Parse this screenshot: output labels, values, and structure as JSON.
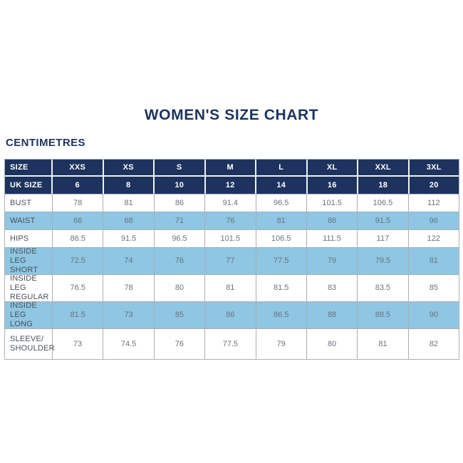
{
  "page": {
    "title": "WOMEN'S SIZE CHART",
    "unit_label": "CENTIMETRES"
  },
  "colors": {
    "navy": "#1d335e",
    "light_blue": "#8ec6e3",
    "grid_border": "#a9b0b6",
    "label_text": "#49525c",
    "value_text": "#6a737d",
    "header_text": "#ffffff"
  },
  "table": {
    "columns": [
      "XXS",
      "XS",
      "S",
      "M",
      "L",
      "XL",
      "XXL",
      "3XL"
    ],
    "rows": [
      {
        "name": "size-row",
        "type": "header",
        "label": "SIZE",
        "values": [
          "XXS",
          "XS",
          "S",
          "M",
          "L",
          "XL",
          "XXL",
          "3XL"
        ]
      },
      {
        "name": "uk-size-row",
        "type": "header",
        "label": "UK SIZE",
        "values": [
          "6",
          "8",
          "10",
          "12",
          "14",
          "16",
          "18",
          "20"
        ]
      },
      {
        "name": "bust-row",
        "type": "white",
        "label": "BUST",
        "values": [
          "78",
          "81",
          "86",
          "91.4",
          "96.5",
          "101.5",
          "106.5",
          "112"
        ]
      },
      {
        "name": "waist-row",
        "type": "blue",
        "label": "WAIST",
        "values": [
          "66",
          "68",
          "71",
          "76",
          "81",
          "86",
          "91.5",
          "96"
        ]
      },
      {
        "name": "hips-row",
        "type": "white",
        "label": "HIPS",
        "values": [
          "86.5",
          "91.5",
          "96.5",
          "101.5",
          "106.5",
          "111.5",
          "117",
          "122"
        ]
      },
      {
        "name": "inside-leg-short-row",
        "type": "blue",
        "label": "INSIDE LEG\nSHORT",
        "values": [
          "72.5",
          "74",
          "76",
          "77",
          "77.5",
          "79",
          "79.5",
          "81"
        ]
      },
      {
        "name": "inside-leg-regular-row",
        "type": "white",
        "label": "INSIDE LEG\nREGULAR",
        "values": [
          "76.5",
          "78",
          "80",
          "81",
          "81.5",
          "83",
          "83.5",
          "85"
        ]
      },
      {
        "name": "inside-leg-long-row",
        "type": "blue",
        "label": "INSIDE LEG\nLONG",
        "values": [
          "81.5",
          "73",
          "85",
          "86",
          "86.5",
          "88",
          "88.5",
          "90"
        ]
      },
      {
        "name": "sleeve-shoulder-row",
        "type": "white",
        "label": "SLEEVE/\nSHOULDER",
        "values": [
          "73",
          "74.5",
          "76",
          "77.5",
          "79",
          "80",
          "81",
          "82"
        ]
      }
    ]
  }
}
